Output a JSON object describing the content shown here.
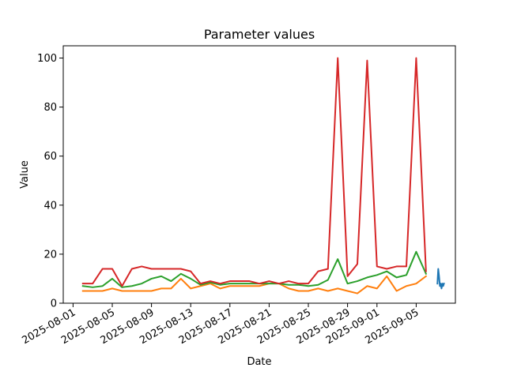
{
  "chart_data": {
    "type": "line",
    "title": "Parameter values",
    "xlabel": "Date",
    "ylabel": "Value",
    "xlim": [
      "2025-07-31",
      "2025-09-09"
    ],
    "ylim": [
      0,
      105
    ],
    "x_ticks": [
      "2025-08-01",
      "2025-08-05",
      "2025-08-09",
      "2025-08-13",
      "2025-08-17",
      "2025-08-21",
      "2025-08-25",
      "2025-08-29",
      "2025-09-01",
      "2025-09-05"
    ],
    "y_ticks": [
      0,
      20,
      40,
      60,
      80,
      100
    ],
    "grid": false,
    "series": [
      {
        "color": "#1f77b4",
        "points": [
          [
            "2025-09-07 04:00",
            8
          ],
          [
            "2025-09-07 06:00",
            14
          ],
          [
            "2025-09-07 08:00",
            11
          ],
          [
            "2025-09-07 10:00",
            7
          ],
          [
            "2025-09-07 12:00",
            8
          ],
          [
            "2025-09-07 14:00",
            6
          ],
          [
            "2025-09-07 16:00",
            8
          ],
          [
            "2025-09-07 18:00",
            7
          ],
          [
            "2025-09-07 20:00",
            8
          ]
        ]
      },
      {
        "color": "#ff7f0e",
        "points": [
          [
            "2025-08-02",
            5
          ],
          [
            "2025-08-03",
            5
          ],
          [
            "2025-08-04",
            5
          ],
          [
            "2025-08-05",
            6
          ],
          [
            "2025-08-06",
            5
          ],
          [
            "2025-08-07",
            5
          ],
          [
            "2025-08-08",
            5
          ],
          [
            "2025-08-09",
            5
          ],
          [
            "2025-08-10",
            6
          ],
          [
            "2025-08-11",
            6
          ],
          [
            "2025-08-12",
            10
          ],
          [
            "2025-08-13",
            6
          ],
          [
            "2025-08-14",
            7
          ],
          [
            "2025-08-15",
            8
          ],
          [
            "2025-08-16",
            6
          ],
          [
            "2025-08-17",
            7
          ],
          [
            "2025-08-18",
            7
          ],
          [
            "2025-08-19",
            7
          ],
          [
            "2025-08-20",
            7
          ],
          [
            "2025-08-21",
            8
          ],
          [
            "2025-08-22",
            8
          ],
          [
            "2025-08-23",
            6
          ],
          [
            "2025-08-24",
            5
          ],
          [
            "2025-08-25",
            5
          ],
          [
            "2025-08-26",
            6
          ],
          [
            "2025-08-27",
            5
          ],
          [
            "2025-08-28",
            6
          ],
          [
            "2025-08-29",
            5
          ],
          [
            "2025-08-30",
            4
          ],
          [
            "2025-08-31",
            7
          ],
          [
            "2025-09-01",
            6
          ],
          [
            "2025-09-02",
            11
          ],
          [
            "2025-09-03",
            5
          ],
          [
            "2025-09-04",
            7
          ],
          [
            "2025-09-05",
            8
          ],
          [
            "2025-09-06",
            11
          ]
        ]
      },
      {
        "color": "#2ca02c",
        "points": [
          [
            "2025-08-02",
            7
          ],
          [
            "2025-08-03",
            6.5
          ],
          [
            "2025-08-04",
            7
          ],
          [
            "2025-08-05",
            10
          ],
          [
            "2025-08-06",
            6.5
          ],
          [
            "2025-08-07",
            7
          ],
          [
            "2025-08-08",
            8
          ],
          [
            "2025-08-09",
            10
          ],
          [
            "2025-08-10",
            11
          ],
          [
            "2025-08-11",
            9
          ],
          [
            "2025-08-12",
            12
          ],
          [
            "2025-08-13",
            10
          ],
          [
            "2025-08-14",
            7.5
          ],
          [
            "2025-08-15",
            8.5
          ],
          [
            "2025-08-16",
            7.5
          ],
          [
            "2025-08-17",
            8
          ],
          [
            "2025-08-18",
            8
          ],
          [
            "2025-08-19",
            8
          ],
          [
            "2025-08-20",
            8
          ],
          [
            "2025-08-21",
            8
          ],
          [
            "2025-08-22",
            8
          ],
          [
            "2025-08-23",
            7.5
          ],
          [
            "2025-08-24",
            7.5
          ],
          [
            "2025-08-25",
            7
          ],
          [
            "2025-08-26",
            7.5
          ],
          [
            "2025-08-27",
            9.5
          ],
          [
            "2025-08-28",
            18
          ],
          [
            "2025-08-29",
            8
          ],
          [
            "2025-08-30",
            9
          ],
          [
            "2025-08-31",
            10.5
          ],
          [
            "2025-09-01",
            11.5
          ],
          [
            "2025-09-02",
            13
          ],
          [
            "2025-09-03",
            10.5
          ],
          [
            "2025-09-04",
            11.5
          ],
          [
            "2025-09-05",
            21
          ],
          [
            "2025-09-06",
            12
          ]
        ]
      },
      {
        "color": "#d62728",
        "points": [
          [
            "2025-08-02",
            8
          ],
          [
            "2025-08-03",
            8
          ],
          [
            "2025-08-04",
            14
          ],
          [
            "2025-08-05",
            14
          ],
          [
            "2025-08-06",
            7
          ],
          [
            "2025-08-07",
            14
          ],
          [
            "2025-08-08",
            15
          ],
          [
            "2025-08-09",
            14
          ],
          [
            "2025-08-10",
            14
          ],
          [
            "2025-08-11",
            14
          ],
          [
            "2025-08-12",
            14
          ],
          [
            "2025-08-13",
            13
          ],
          [
            "2025-08-14",
            8
          ],
          [
            "2025-08-15",
            9
          ],
          [
            "2025-08-16",
            8
          ],
          [
            "2025-08-17",
            9
          ],
          [
            "2025-08-18",
            9
          ],
          [
            "2025-08-19",
            9
          ],
          [
            "2025-08-20",
            8
          ],
          [
            "2025-08-21",
            9
          ],
          [
            "2025-08-22",
            8
          ],
          [
            "2025-08-23",
            9
          ],
          [
            "2025-08-24",
            8
          ],
          [
            "2025-08-25",
            8
          ],
          [
            "2025-08-26",
            13
          ],
          [
            "2025-08-27",
            14
          ],
          [
            "2025-08-28",
            100
          ],
          [
            "2025-08-29",
            11
          ],
          [
            "2025-08-30",
            16
          ],
          [
            "2025-08-31",
            99
          ],
          [
            "2025-09-01",
            15
          ],
          [
            "2025-09-02",
            14
          ],
          [
            "2025-09-03",
            15
          ],
          [
            "2025-09-04",
            15
          ],
          [
            "2025-09-05",
            100
          ],
          [
            "2025-09-06",
            13
          ]
        ]
      }
    ]
  }
}
